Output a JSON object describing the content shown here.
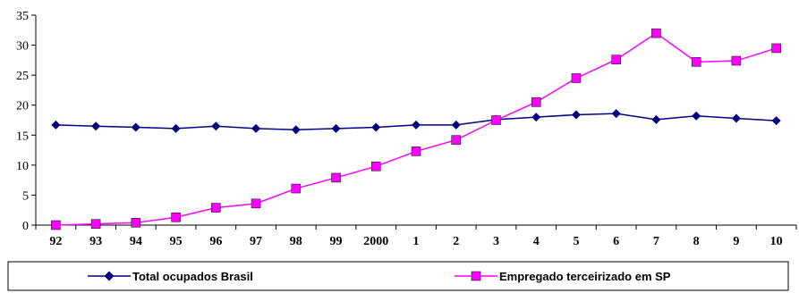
{
  "chart_data": {
    "type": "line",
    "categories": [
      "92",
      "93",
      "94",
      "95",
      "96",
      "97",
      "98",
      "99",
      "2000",
      "1",
      "2",
      "3",
      "4",
      "5",
      "6",
      "7",
      "8",
      "9",
      "10"
    ],
    "ylim": [
      0,
      35
    ],
    "yticks": [
      0,
      5,
      10,
      15,
      20,
      25,
      30,
      35
    ],
    "grid": false,
    "legend_position": "bottom",
    "series": [
      {
        "name": "Total ocupados Brasil",
        "color": "#000080",
        "marker": "diamond",
        "values": [
          16.7,
          16.5,
          16.3,
          16.1,
          16.5,
          16.1,
          15.9,
          16.1,
          16.3,
          16.7,
          16.7,
          17.6,
          18.0,
          18.4,
          18.6,
          17.6,
          18.2,
          17.8,
          17.4
        ]
      },
      {
        "name": "Empregado terceirizado em SP",
        "color": "#FF00FF",
        "marker": "square",
        "values": [
          0.0,
          0.2,
          0.4,
          1.3,
          2.9,
          3.6,
          6.1,
          7.9,
          9.8,
          12.3,
          14.2,
          17.5,
          20.5,
          24.5,
          27.6,
          32.0,
          27.2,
          27.4,
          29.5
        ]
      }
    ]
  }
}
